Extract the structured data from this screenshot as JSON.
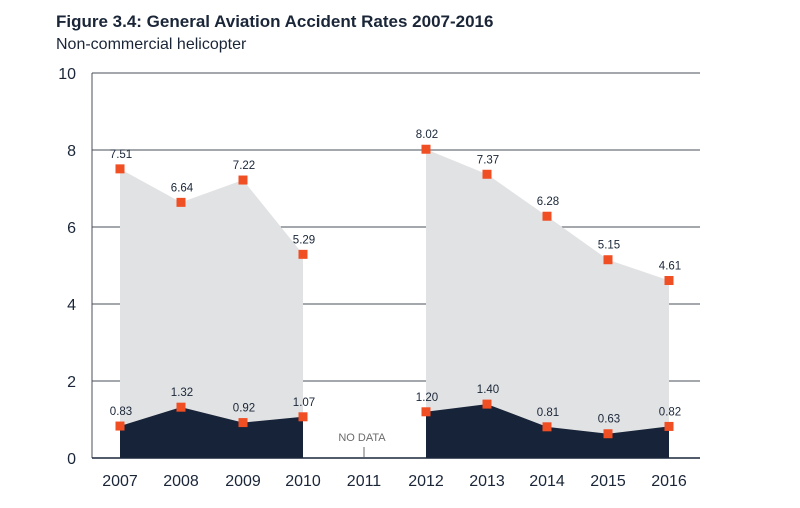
{
  "chart_data": {
    "type": "area",
    "title": "Figure 3.4: General Aviation Accident Rates 2007-2016",
    "subtitle": "Non-commercial helicopter",
    "categories": [
      "2007",
      "2008",
      "2009",
      "2010",
      "2011",
      "2012",
      "2013",
      "2014",
      "2015",
      "2016"
    ],
    "ylim": [
      0,
      10
    ],
    "yticks": [
      "0",
      "2",
      "4",
      "6",
      "8",
      "10"
    ],
    "grid": true,
    "series": [
      {
        "color": "#e1e2e3",
        "values": [
          7.51,
          6.64,
          7.22,
          5.29,
          null,
          8.02,
          7.37,
          6.28,
          5.15,
          4.61
        ],
        "labels": [
          "7.51",
          "6.64",
          "7.22",
          "5.29",
          null,
          "8.02",
          "7.37",
          "6.28",
          "5.15",
          "4.61"
        ]
      },
      {
        "color": "#172338",
        "values": [
          0.83,
          1.32,
          0.92,
          1.07,
          null,
          1.2,
          1.4,
          0.81,
          0.63,
          0.82
        ],
        "labels": [
          "0.83",
          "1.32",
          "0.92",
          "1.07",
          null,
          "1.20",
          "1.40",
          "0.81",
          "0.63",
          "0.82"
        ]
      }
    ],
    "marker_color": "#f04e23",
    "annotation": "NO DATA"
  }
}
